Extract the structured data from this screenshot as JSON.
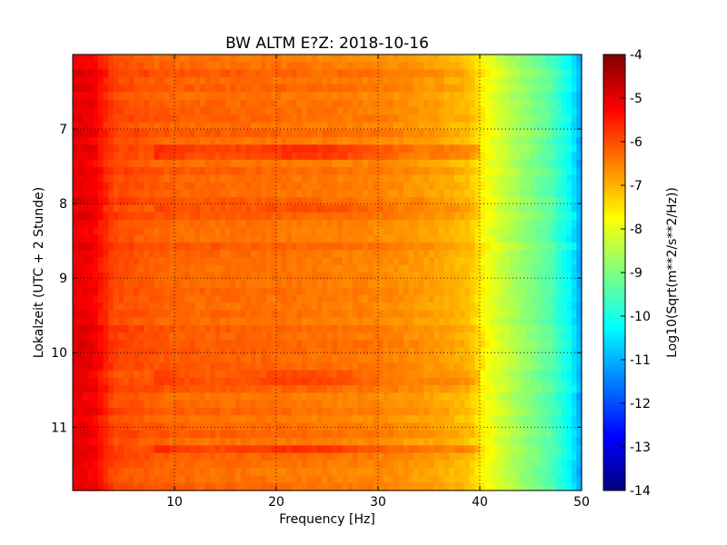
{
  "chart_data": {
    "type": "heatmap",
    "title": "BW ALTM E?Z: 2018-10-16",
    "xlabel": "Frequency [Hz]",
    "ylabel": "Lokalzeit (UTC + 2 Stunde)",
    "xlim": [
      0,
      50
    ],
    "ylim": [
      6.0,
      11.85
    ],
    "y_inverted": true,
    "x_ticks": [
      10,
      20,
      30,
      40,
      50
    ],
    "y_ticks": [
      7,
      8,
      9,
      10,
      11
    ],
    "grid": true,
    "colormap": "jet",
    "colorbar": {
      "label": "Log10(Sqrt(m**2/s**2/Hz))",
      "range": [
        -14,
        -4
      ],
      "ticks": [
        -4,
        -5,
        -6,
        -7,
        -8,
        -9,
        -10,
        -11,
        -12,
        -13,
        -14
      ]
    },
    "spectral_profile": [
      {
        "freq_hz": 0.5,
        "log_psd": -5.0
      },
      {
        "freq_hz": 2,
        "log_psd": -5.1
      },
      {
        "freq_hz": 4,
        "log_psd": -5.9
      },
      {
        "freq_hz": 10,
        "log_psd": -6.2
      },
      {
        "freq_hz": 20,
        "log_psd": -6.3
      },
      {
        "freq_hz": 30,
        "log_psd": -6.5
      },
      {
        "freq_hz": 36,
        "log_psd": -6.8
      },
      {
        "freq_hz": 39,
        "log_psd": -7.1
      },
      {
        "freq_hz": 41,
        "log_psd": -7.9
      },
      {
        "freq_hz": 44,
        "log_psd": -8.7
      },
      {
        "freq_hz": 47,
        "log_psd": -9.4
      },
      {
        "freq_hz": 49,
        "log_psd": -10.3
      },
      {
        "freq_hz": 50,
        "log_psd": -11.2
      }
    ],
    "events": [
      {
        "time_h": 7.31,
        "log_psd_offset": 0.6
      },
      {
        "time_h": 8.05,
        "log_psd_offset": 0.45
      },
      {
        "time_h": 10.33,
        "log_psd_offset": 0.5
      },
      {
        "time_h": 11.32,
        "log_psd_offset": 0.6
      }
    ]
  },
  "colors": {
    "background": "#ffffff",
    "grid": "#000000"
  }
}
